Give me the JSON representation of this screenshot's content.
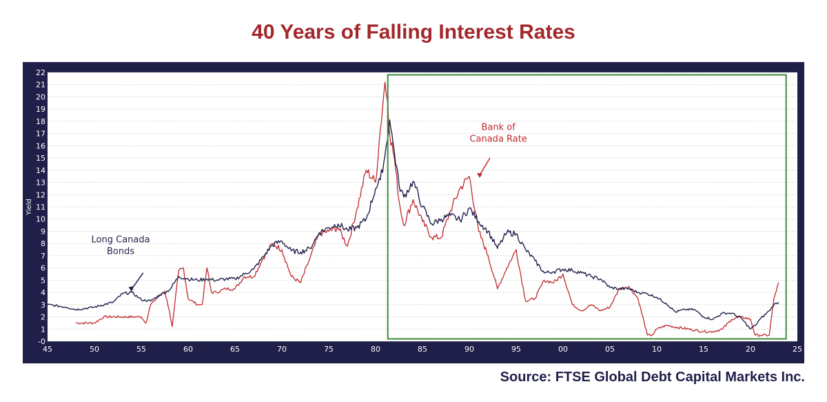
{
  "title": "40 Years of Falling Interest Rates",
  "source": "Source: FTSE Global Debt Capital Markets Inc.",
  "colors": {
    "frame": "#1f1f4a",
    "bonds": "#1f1f4a",
    "boc": "#c0282e",
    "title": "#a3262b",
    "highlight_box": "#3e8a3e",
    "grid": "#bdbdbd"
  },
  "chart_data": {
    "type": "line",
    "ylabel": "Yield",
    "xlabel": "",
    "xlim": [
      1945,
      2025
    ],
    "ylim": [
      0,
      22
    ],
    "x_tick_labels": [
      "45",
      "50",
      "55",
      "60",
      "65",
      "70",
      "75",
      "80",
      "85",
      "90",
      "95",
      "00",
      "05",
      "10",
      "15",
      "20",
      "25"
    ],
    "x_ticks": [
      1945,
      1950,
      1955,
      1960,
      1965,
      1970,
      1975,
      1980,
      1985,
      1990,
      1995,
      2000,
      2005,
      2010,
      2015,
      2020,
      2025
    ],
    "y_tick_labels": [
      "-0",
      "1",
      "2",
      "3",
      "4",
      "5",
      "6",
      "7",
      "8",
      "9",
      "10",
      "11",
      "12",
      "13",
      "14",
      "15",
      "16",
      "17",
      "18",
      "19",
      "20",
      "21",
      "22"
    ],
    "y_ticks": [
      0,
      1,
      2,
      3,
      4,
      5,
      6,
      7,
      8,
      9,
      10,
      11,
      12,
      13,
      14,
      15,
      16,
      17,
      18,
      19,
      20,
      21,
      22
    ],
    "grid": "horizontal dotted",
    "highlight_box": {
      "x": [
        1981.3,
        2023.8
      ],
      "y": [
        0.2,
        21.8
      ]
    },
    "series": [
      {
        "name": "Long Canada Bonds",
        "color": "#1f1f4a",
        "x": [
          1945,
          1947,
          1948,
          1950,
          1952,
          1953,
          1954,
          1955,
          1956,
          1957,
          1958,
          1959,
          1960,
          1961,
          1962,
          1963,
          1964,
          1965,
          1966,
          1967,
          1968,
          1969,
          1970,
          1971,
          1972,
          1973,
          1974,
          1975,
          1976,
          1977,
          1978,
          1979,
          1980,
          1980.5,
          1981,
          1981.5,
          1982,
          1982.5,
          1983,
          1984,
          1985,
          1986,
          1987,
          1988,
          1989,
          1990,
          1991,
          1992,
          1993,
          1994,
          1995,
          1996,
          1997,
          1998,
          1999,
          2000,
          2001,
          2002,
          2003,
          2004,
          2005,
          2006,
          2007,
          2008,
          2009,
          2010,
          2011,
          2012,
          2013,
          2014,
          2015,
          2016,
          2017,
          2018,
          2019,
          2020,
          2020.5,
          2021,
          2022,
          2022.5,
          2023
        ],
        "y": [
          3.0,
          2.8,
          2.6,
          2.8,
          3.2,
          3.9,
          4.0,
          3.4,
          3.3,
          3.8,
          4.2,
          5.3,
          5.1,
          5.0,
          5.1,
          5.0,
          5.1,
          5.1,
          5.5,
          5.9,
          6.9,
          7.9,
          8.2,
          7.4,
          7.3,
          7.6,
          8.9,
          9.3,
          9.6,
          9.1,
          9.3,
          10.0,
          12.5,
          13.2,
          15.2,
          18.1,
          15.5,
          12.8,
          11.8,
          13.1,
          11.0,
          9.6,
          10.0,
          10.3,
          9.9,
          10.9,
          9.8,
          9.0,
          7.6,
          8.9,
          8.8,
          7.5,
          6.6,
          5.6,
          5.7,
          5.9,
          5.8,
          5.6,
          5.3,
          5.1,
          4.4,
          4.3,
          4.3,
          4.0,
          3.9,
          3.6,
          3.1,
          2.4,
          2.6,
          2.6,
          2.0,
          1.8,
          2.3,
          2.3,
          1.9,
          1.0,
          1.3,
          1.8,
          2.5,
          3.0,
          3.2
        ]
      },
      {
        "name": "Bank of Canada Rate",
        "color": "#c0282e",
        "x": [
          1948,
          1950,
          1951,
          1955,
          1955.5,
          1956,
          1957,
          1957.5,
          1958,
          1958.3,
          1959,
          1959.5,
          1960,
          1961,
          1961.5,
          1962,
          1962.5,
          1963,
          1964,
          1965,
          1966,
          1967,
          1968,
          1969,
          1970,
          1971,
          1972,
          1973,
          1974,
          1975,
          1976,
          1977,
          1978,
          1979,
          1980,
          1980.5,
          1981,
          1981.3,
          1981.5,
          1982,
          1982.5,
          1983,
          1984,
          1985,
          1986,
          1987,
          1988,
          1989,
          1990,
          1991,
          1992,
          1993,
          1994,
          1995,
          1996,
          1997,
          1998,
          1999,
          2000,
          2001,
          2002,
          2003,
          2004,
          2005,
          2006,
          2007,
          2008,
          2009,
          2009.5,
          2010,
          2011,
          2015,
          2016,
          2017,
          2018,
          2019,
          2020,
          2020.5,
          2021,
          2022,
          2022.5,
          2023
        ],
        "y": [
          1.5,
          1.5,
          2.0,
          2.0,
          1.5,
          3.0,
          3.8,
          4.1,
          2.5,
          1.2,
          5.8,
          6.0,
          3.5,
          3.0,
          3.0,
          6.0,
          4.0,
          4.0,
          4.3,
          4.3,
          5.3,
          5.3,
          6.8,
          8.0,
          7.5,
          5.3,
          4.8,
          6.8,
          8.8,
          9.0,
          9.3,
          7.8,
          10.8,
          14.0,
          13.0,
          17.3,
          21.2,
          19.5,
          17.0,
          15.0,
          11.5,
          9.5,
          11.6,
          9.8,
          8.5,
          8.5,
          10.7,
          12.5,
          13.5,
          9.0,
          7.0,
          4.3,
          6.0,
          7.5,
          3.3,
          3.5,
          5.0,
          4.8,
          5.5,
          3.0,
          2.5,
          3.0,
          2.5,
          2.8,
          4.3,
          4.5,
          3.5,
          0.5,
          0.5,
          1.0,
          1.3,
          0.8,
          0.8,
          1.0,
          1.8,
          2.0,
          1.8,
          0.5,
          0.5,
          0.5,
          3.5,
          4.8
        ]
      }
    ],
    "annotations": [
      {
        "text_lines": [
          "Long Canada",
          "Bonds"
        ]
      },
      {
        "text_lines": [
          "Bank of",
          "Canada Rate"
        ]
      }
    ]
  }
}
